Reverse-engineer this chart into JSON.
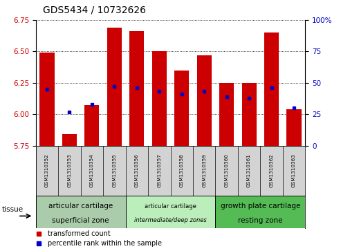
{
  "title": "GDS5434 / 10732626",
  "samples": [
    "GSM1310352",
    "GSM1310353",
    "GSM1310354",
    "GSM1310355",
    "GSM1310356",
    "GSM1310357",
    "GSM1310358",
    "GSM1310359",
    "GSM1310360",
    "GSM1310361",
    "GSM1310362",
    "GSM1310363"
  ],
  "transformed_count": [
    6.49,
    5.84,
    6.07,
    6.69,
    6.66,
    6.5,
    6.35,
    6.47,
    6.25,
    6.25,
    6.65,
    6.04
  ],
  "percentile_rank": [
    45,
    27,
    33,
    47,
    46,
    43,
    41,
    43,
    39,
    38,
    46,
    30
  ],
  "ylim_left": [
    5.75,
    6.75
  ],
  "ylim_right": [
    0,
    100
  ],
  "yticks_left": [
    5.75,
    6.0,
    6.25,
    6.5,
    6.75
  ],
  "yticks_right": [
    0,
    25,
    50,
    75,
    100
  ],
  "bar_color": "#cc0000",
  "dot_color": "#0000cc",
  "bar_bottom": 5.75,
  "groups": [
    {
      "label1": "articular cartilage",
      "label2": "superficial zone",
      "start": 0,
      "end": 4,
      "color": "#bbddbb",
      "italic2": false
    },
    {
      "label1": "articular cartilage",
      "label2": "intermediate/deep zones",
      "start": 4,
      "end": 8,
      "color": "#cceecc",
      "italic2": true
    },
    {
      "label1": "growth plate cartilage",
      "label2": "resting zone",
      "start": 8,
      "end": 12,
      "color": "#44bb44",
      "italic2": false
    }
  ],
  "tissue_label": "tissue",
  "legend_red": "transformed count",
  "legend_blue": "percentile rank within the sample",
  "title_fontsize": 10,
  "axis_color_left": "#cc0000",
  "axis_color_right": "#0000cc",
  "plot_bg_color": "#ffffff",
  "tick_bg_color": "#d3d3d3"
}
